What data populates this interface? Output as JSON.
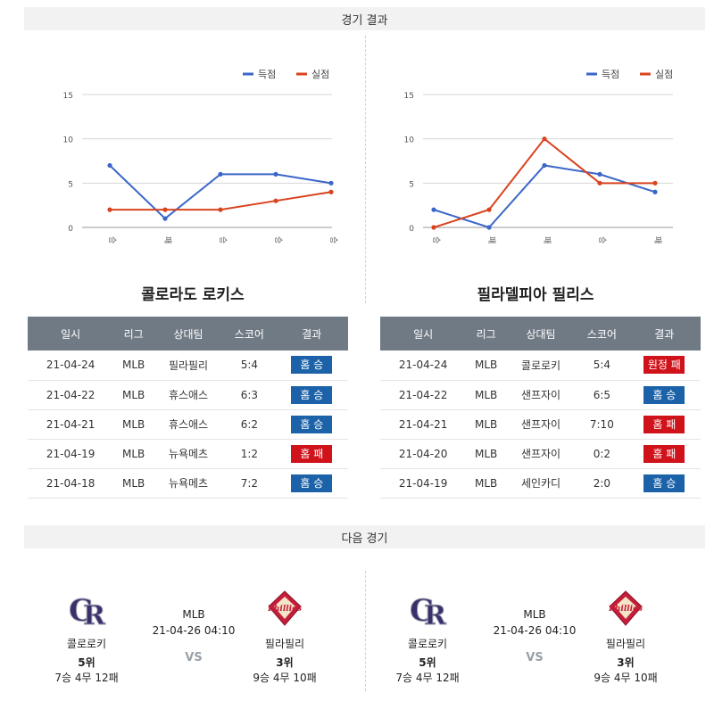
{
  "sections": {
    "results_title": "경기 결과",
    "next_title": "다음 경기"
  },
  "legend": {
    "scored": "득점",
    "allowed": "실점"
  },
  "colors": {
    "scored": "#3b66c9",
    "allowed": "#d9431e",
    "win": "#1c62a8",
    "loss": "#d0121b"
  },
  "chart_data": [
    {
      "type": "line",
      "team": "콜로라도 로키스",
      "categories": [
        "승",
        "패",
        "승",
        "승",
        "승"
      ],
      "ylim": [
        0,
        15
      ],
      "yticks": [
        0,
        5,
        10,
        15
      ],
      "series": [
        {
          "name": "득점",
          "values": [
            7,
            1,
            6,
            6,
            5
          ]
        },
        {
          "name": "실점",
          "values": [
            2,
            2,
            2,
            3,
            4
          ]
        }
      ],
      "legend_position": "top-right",
      "grid": true
    },
    {
      "type": "line",
      "team": "필라델피아 필리스",
      "categories": [
        "승",
        "패",
        "패",
        "승",
        "패"
      ],
      "ylim": [
        0,
        15
      ],
      "yticks": [
        0,
        5,
        10,
        15
      ],
      "series": [
        {
          "name": "득점",
          "values": [
            2,
            0,
            7,
            6,
            4
          ]
        },
        {
          "name": "실점",
          "values": [
            0,
            2,
            10,
            5,
            5
          ]
        }
      ],
      "legend_position": "top-right",
      "grid": true
    }
  ],
  "teams": [
    {
      "title": "콜로라도 로키스",
      "headers": [
        "일시",
        "리그",
        "상대팀",
        "스코어",
        "결과"
      ],
      "rows": [
        {
          "date": "21-04-24",
          "league": "MLB",
          "opp": "필라필리",
          "score": "5:4",
          "result": "홈 승",
          "color": "blue"
        },
        {
          "date": "21-04-22",
          "league": "MLB",
          "opp": "휴스애스",
          "score": "6:3",
          "result": "홈 승",
          "color": "blue"
        },
        {
          "date": "21-04-21",
          "league": "MLB",
          "opp": "휴스애스",
          "score": "6:2",
          "result": "홈 승",
          "color": "blue"
        },
        {
          "date": "21-04-19",
          "league": "MLB",
          "opp": "뉴욕메츠",
          "score": "1:2",
          "result": "홈 패",
          "color": "red"
        },
        {
          "date": "21-04-18",
          "league": "MLB",
          "opp": "뉴욕메츠",
          "score": "7:2",
          "result": "홈 승",
          "color": "blue"
        }
      ]
    },
    {
      "title": "필라델피아 필리스",
      "headers": [
        "일시",
        "리그",
        "상대팀",
        "스코어",
        "결과"
      ],
      "rows": [
        {
          "date": "21-04-24",
          "league": "MLB",
          "opp": "콜로로키",
          "score": "5:4",
          "result": "원정 패",
          "color": "red"
        },
        {
          "date": "21-04-22",
          "league": "MLB",
          "opp": "샌프자이",
          "score": "6:5",
          "result": "홈 승",
          "color": "blue"
        },
        {
          "date": "21-04-21",
          "league": "MLB",
          "opp": "샌프자이",
          "score": "7:10",
          "result": "홈 패",
          "color": "red"
        },
        {
          "date": "21-04-20",
          "league": "MLB",
          "opp": "샌프자이",
          "score": "0:2",
          "result": "홈 패",
          "color": "red"
        },
        {
          "date": "21-04-19",
          "league": "MLB",
          "opp": "세인카디",
          "score": "2:0",
          "result": "홈 승",
          "color": "blue"
        }
      ]
    }
  ],
  "next_games": [
    {
      "home": {
        "name": "콜로로키",
        "rank": "5위",
        "record": "7승 4무 12패",
        "logo": "rockies-logo"
      },
      "league": "MLB",
      "datetime": "21-04-26 04:10",
      "vs": "VS",
      "away": {
        "name": "필라필리",
        "rank": "3위",
        "record": "9승 4무 10패",
        "logo": "phillies-logo"
      }
    },
    {
      "home": {
        "name": "콜로로키",
        "rank": "5위",
        "record": "7승 4무 12패",
        "logo": "rockies-logo"
      },
      "league": "MLB",
      "datetime": "21-04-26 04:10",
      "vs": "VS",
      "away": {
        "name": "필라필리",
        "rank": "3위",
        "record": "9승 4무 10패",
        "logo": "phillies-logo"
      }
    }
  ]
}
